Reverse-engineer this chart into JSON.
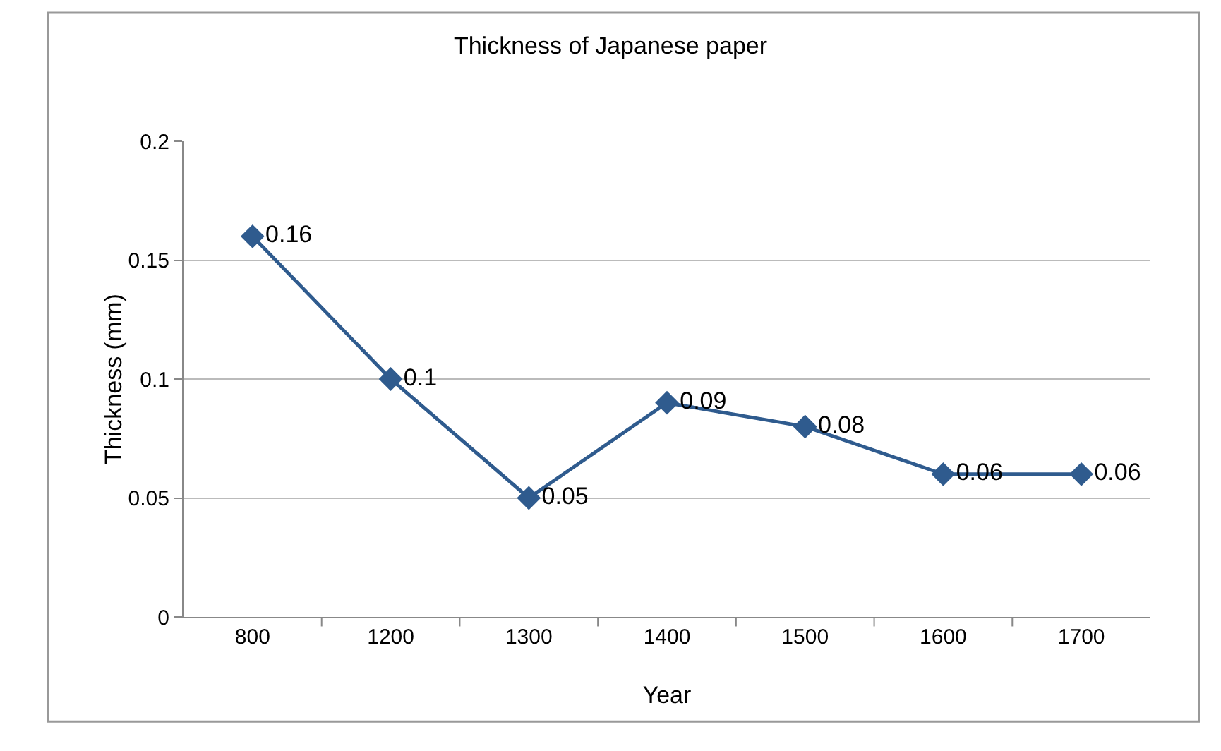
{
  "chart_data": {
    "type": "line",
    "title": "Thickness of Japanese paper",
    "xlabel": "Year",
    "ylabel": "Thickness (mm)",
    "categories": [
      "800",
      "1200",
      "1300",
      "1400",
      "1500",
      "1600",
      "1700"
    ],
    "series": [
      {
        "color": "#2f5b8e",
        "values": [
          0.16,
          0.1,
          0.05,
          0.09,
          0.08,
          0.06,
          0.06
        ]
      }
    ],
    "ylim": [
      0,
      0.2
    ],
    "yticks": [
      0,
      0.05,
      0.1,
      0.15,
      0.2
    ],
    "grid": "y",
    "marker": "diamond",
    "line_style": "solid",
    "data_labels": true,
    "legend": false
  }
}
